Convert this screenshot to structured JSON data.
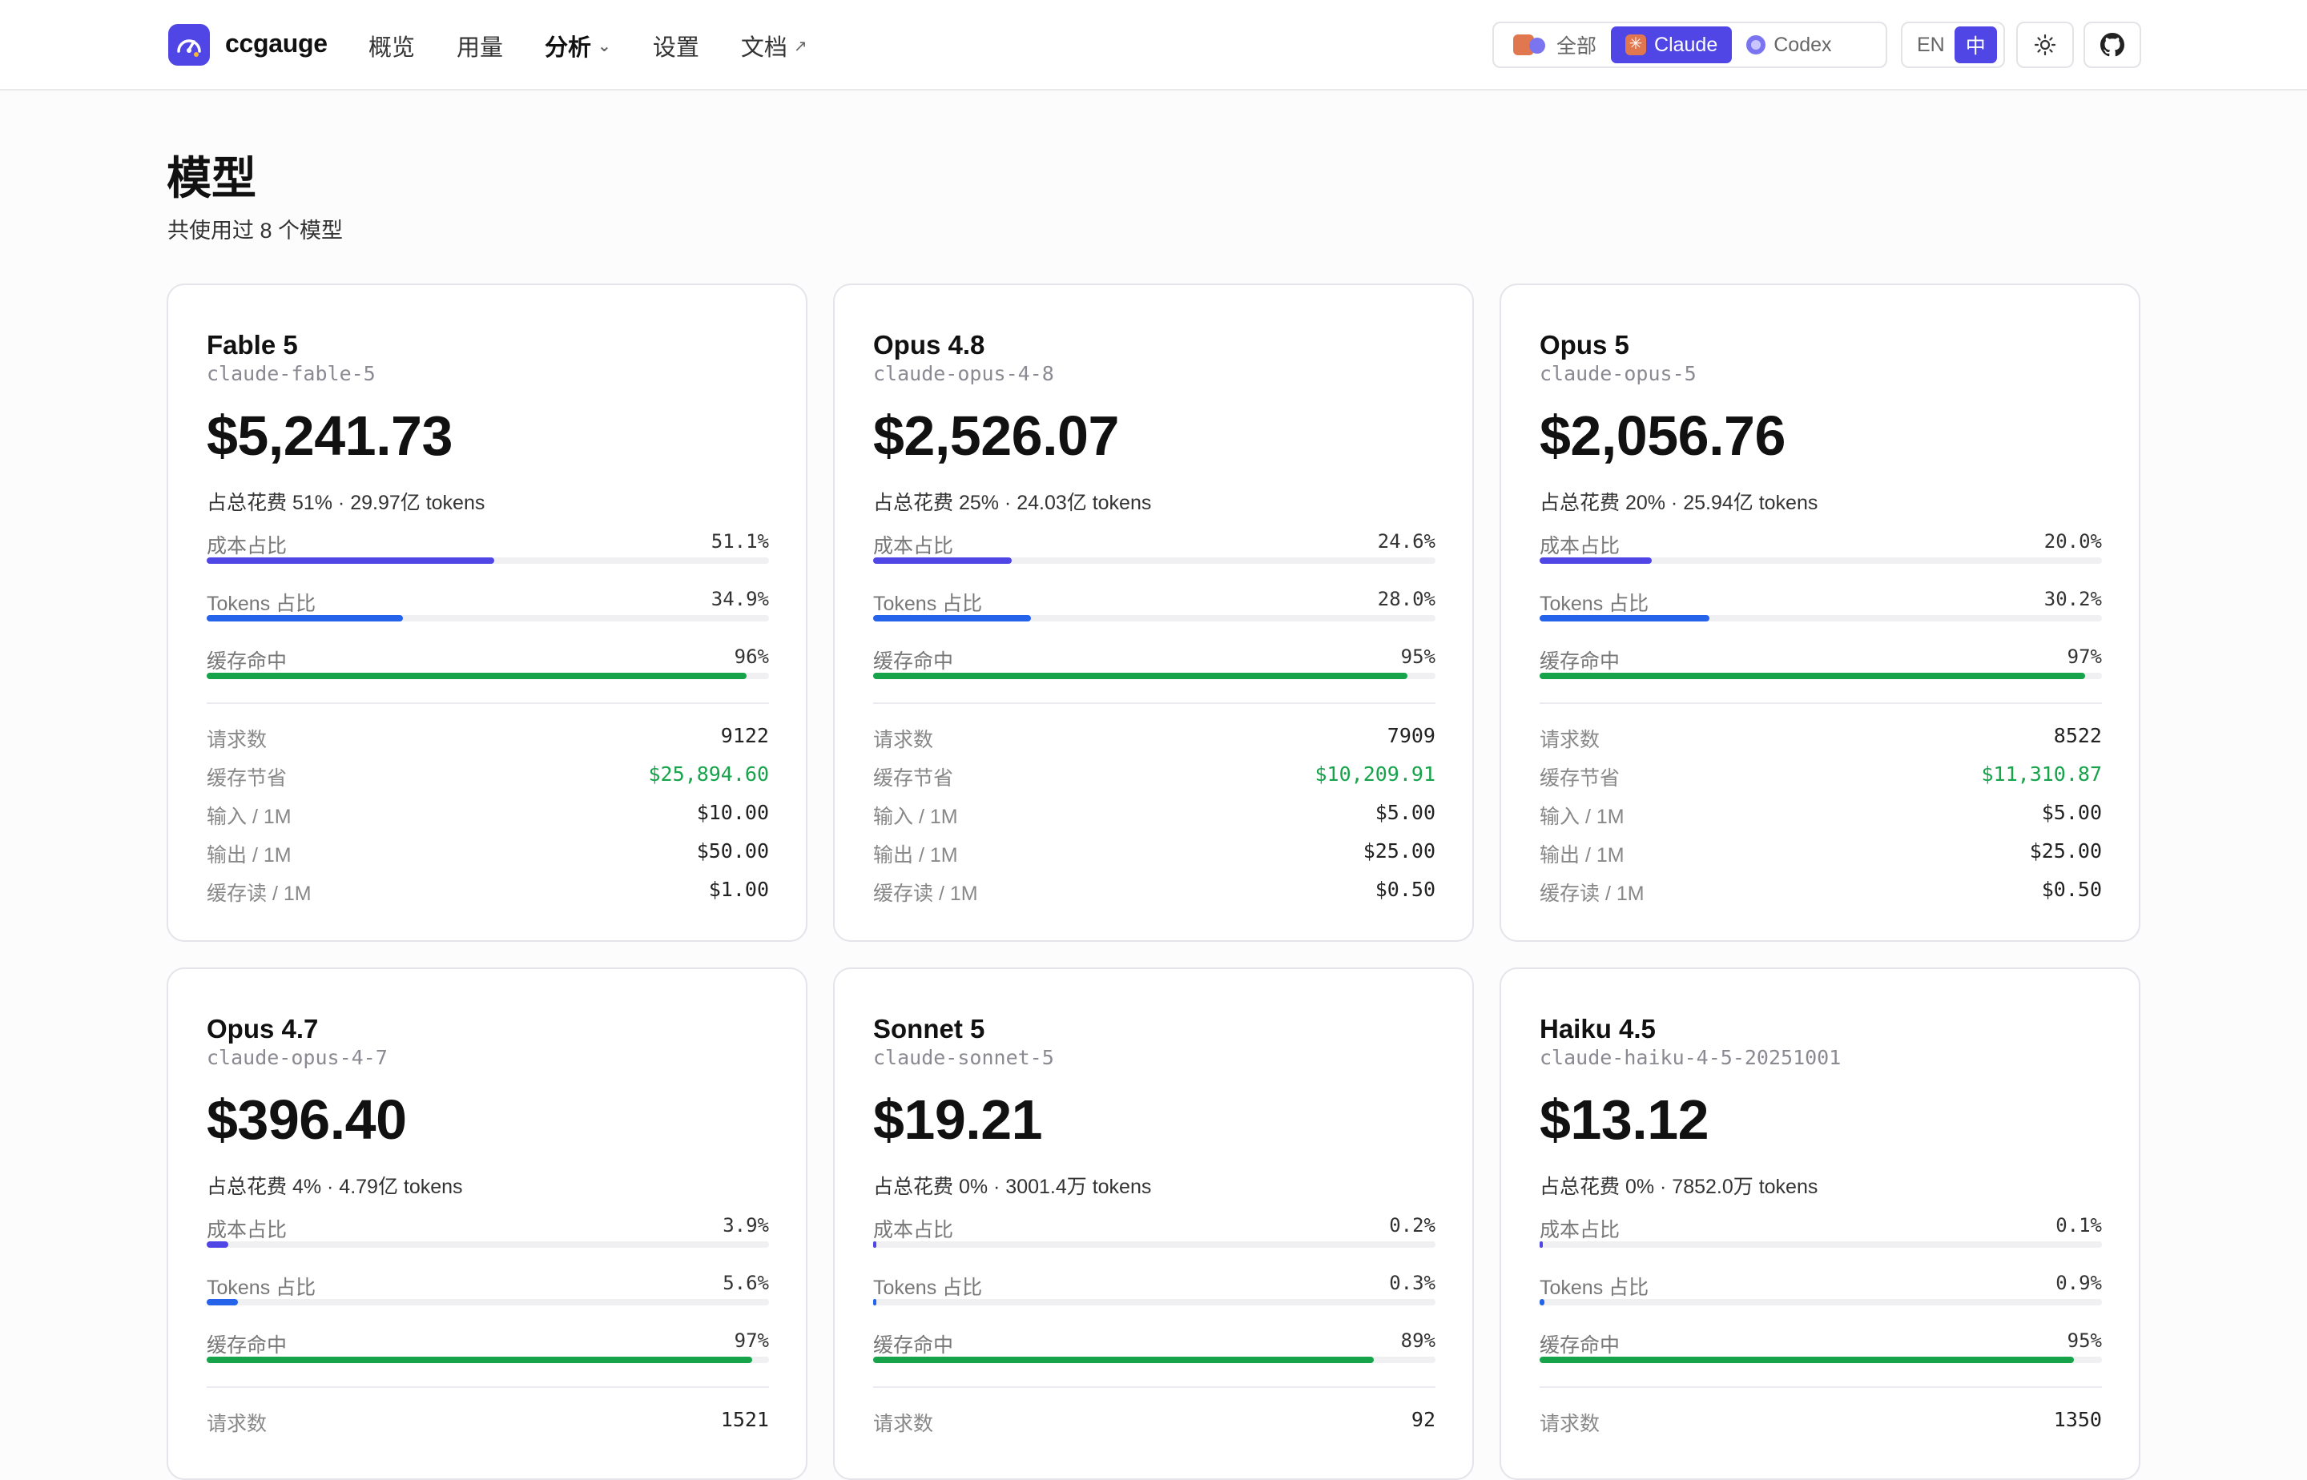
{
  "app": {
    "brand": "ccgauge"
  },
  "nav": [
    {
      "label": "概览"
    },
    {
      "label": "用量"
    },
    {
      "label": "分析",
      "glyph": "⌄"
    },
    {
      "label": "设置"
    },
    {
      "label": "文档",
      "glyph": "↗"
    }
  ],
  "source_filter": {
    "all": "全部",
    "claude": "Claude",
    "codex": "Codex",
    "selected": "Claude"
  },
  "language": {
    "en": "EN",
    "zh": "中",
    "selected": "中"
  },
  "header_icons": {
    "theme": "sun-icon",
    "repo": "github-icon"
  },
  "page": {
    "title": "模型",
    "subtitle": "共使用过 8 个模型"
  },
  "labels": {
    "cost_share": "成本占比",
    "token_share": "Tokens 占比",
    "cache_hit": "缓存命中",
    "requests": "请求数",
    "cache_savings": "缓存节省",
    "input_price": "输入 / 1M",
    "output_price": "输出 / 1M",
    "cache_read_price": "缓存读 / 1M"
  },
  "colors": {
    "accent": "#5046e5",
    "cost_bar": "#4f46e5",
    "token_bar": "#2563eb",
    "cache_bar": "#16a34a",
    "savings_text": "#16a34a"
  },
  "models": [
    {
      "name": "Fable 5",
      "id": "claude-fable-5",
      "cost": "$5,241.73",
      "summary": "占总花费 51% · 29.97亿 tokens",
      "cost_share": "51.1%",
      "cost_share_value": 51.1,
      "token_share": "34.9%",
      "token_share_value": 34.9,
      "cache_hit": "96%",
      "cache_hit_value": 96,
      "requests": "9122",
      "cache_savings": "$25,894.60",
      "input_price": "$10.00",
      "output_price": "$50.00",
      "cache_read_price": "$1.00"
    },
    {
      "name": "Opus 4.8",
      "id": "claude-opus-4-8",
      "cost": "$2,526.07",
      "summary": "占总花费 25% · 24.03亿 tokens",
      "cost_share": "24.6%",
      "cost_share_value": 24.6,
      "token_share": "28.0%",
      "token_share_value": 28.0,
      "cache_hit": "95%",
      "cache_hit_value": 95,
      "requests": "7909",
      "cache_savings": "$10,209.91",
      "input_price": "$5.00",
      "output_price": "$25.00",
      "cache_read_price": "$0.50"
    },
    {
      "name": "Opus 5",
      "id": "claude-opus-5",
      "cost": "$2,056.76",
      "summary": "占总花费 20% · 25.94亿 tokens",
      "cost_share": "20.0%",
      "cost_share_value": 20.0,
      "token_share": "30.2%",
      "token_share_value": 30.2,
      "cache_hit": "97%",
      "cache_hit_value": 97,
      "requests": "8522",
      "cache_savings": "$11,310.87",
      "input_price": "$5.00",
      "output_price": "$25.00",
      "cache_read_price": "$0.50"
    },
    {
      "name": "Opus 4.7",
      "id": "claude-opus-4-7",
      "cost": "$396.40",
      "summary": "占总花费 4% · 4.79亿 tokens",
      "cost_share": "3.9%",
      "cost_share_value": 3.9,
      "token_share": "5.6%",
      "token_share_value": 5.6,
      "cache_hit": "97%",
      "cache_hit_value": 97,
      "requests": "1521"
    },
    {
      "name": "Sonnet 5",
      "id": "claude-sonnet-5",
      "cost": "$19.21",
      "summary": "占总花费 0% · 3001.4万 tokens",
      "cost_share": "0.2%",
      "cost_share_value": 0.2,
      "token_share": "0.3%",
      "token_share_value": 0.3,
      "cache_hit": "89%",
      "cache_hit_value": 89,
      "requests": "92"
    },
    {
      "name": "Haiku 4.5",
      "id": "claude-haiku-4-5-20251001",
      "cost": "$13.12",
      "summary": "占总花费 0% · 7852.0万 tokens",
      "cost_share": "0.1%",
      "cost_share_value": 0.1,
      "token_share": "0.9%",
      "token_share_value": 0.9,
      "cache_hit": "95%",
      "cache_hit_value": 95,
      "requests": "1350"
    }
  ]
}
